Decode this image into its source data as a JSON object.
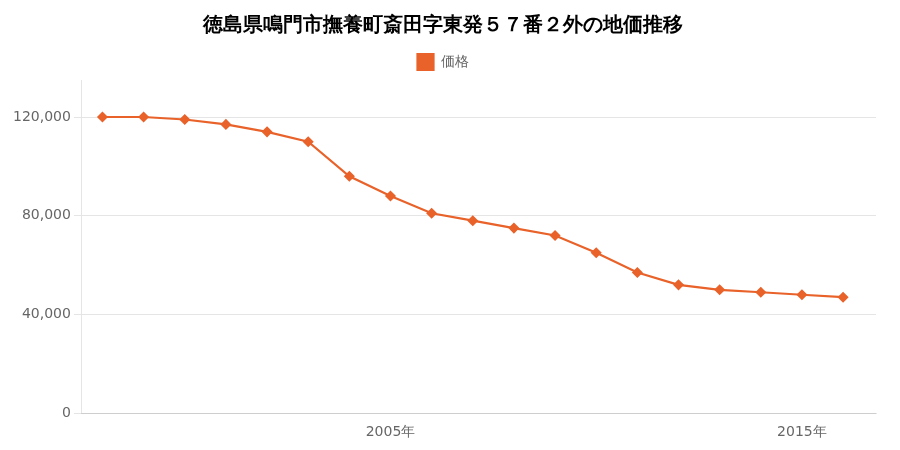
{
  "chart_data": {
    "type": "line",
    "title": "徳島県鳴門市撫養町斎田字東発５７番２外の地価推移",
    "x": [
      1998,
      1999,
      2000,
      2001,
      2002,
      2003,
      2004,
      2005,
      2006,
      2007,
      2008,
      2009,
      2010,
      2011,
      2012,
      2013,
      2014,
      2015,
      2016
    ],
    "series": [
      {
        "name": "価格",
        "color": "#E8622A",
        "marker": "diamond",
        "values": [
          120000,
          120000,
          119000,
          117000,
          114000,
          110000,
          96000,
          88000,
          81000,
          78000,
          75000,
          72000,
          65000,
          57000,
          52000,
          50000,
          49000,
          48000,
          47000
        ]
      }
    ],
    "xlim": [
      1997.5,
      2016.8
    ],
    "xticks": [
      {
        "value": 2005,
        "label": "2005年"
      },
      {
        "value": 2015,
        "label": "2015年"
      }
    ],
    "ylim": [
      0,
      135000
    ],
    "yticks": [
      0,
      {
        "value": 40000,
        "label": "40,000"
      },
      {
        "value": 80000,
        "label": "80,000"
      },
      {
        "value": 120000,
        "label": "120,000"
      }
    ],
    "grid": "y",
    "legend": "top"
  }
}
